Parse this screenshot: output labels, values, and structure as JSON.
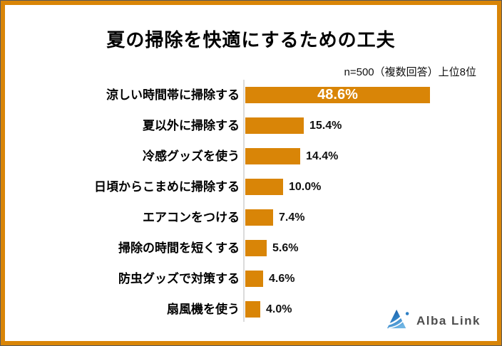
{
  "frame": {
    "border_color": "#D98507",
    "edge_color": "#58595B"
  },
  "header": {
    "title": "夏の掃除を快適にするための工夫",
    "subtitle": "n=500（複数回答）上位8位"
  },
  "chart_data": {
    "type": "bar",
    "orientation": "horizontal",
    "title": "夏の掃除を快適にするための工夫",
    "note": "n=500（複数回答）上位8位",
    "categories": [
      "涼しい時間帯に掃除する",
      "夏以外に掃除する",
      "冷感グッズを使う",
      "日頃からこまめに掃除する",
      "エアコンをつける",
      "掃除の時間を短くする",
      "防虫グッズで対策する",
      "扇風機を使う"
    ],
    "values": [
      48.6,
      15.4,
      14.4,
      10.0,
      7.4,
      5.6,
      4.6,
      4.0
    ],
    "value_labels": [
      "48.6%",
      "15.4%",
      "14.4%",
      "10.0%",
      "7.4%",
      "5.6%",
      "4.6%",
      "4.0%"
    ],
    "bar_color": "#D98507",
    "xlim": [
      0,
      61
    ],
    "grid": false,
    "legend": "none",
    "first_value_inside_bar": true
  },
  "logo": {
    "icon": "alba-link-triangle-logo",
    "text": "Alba Link",
    "icon_colors": [
      "#15549E",
      "#2E7FC4",
      "#6FB5E4"
    ]
  }
}
